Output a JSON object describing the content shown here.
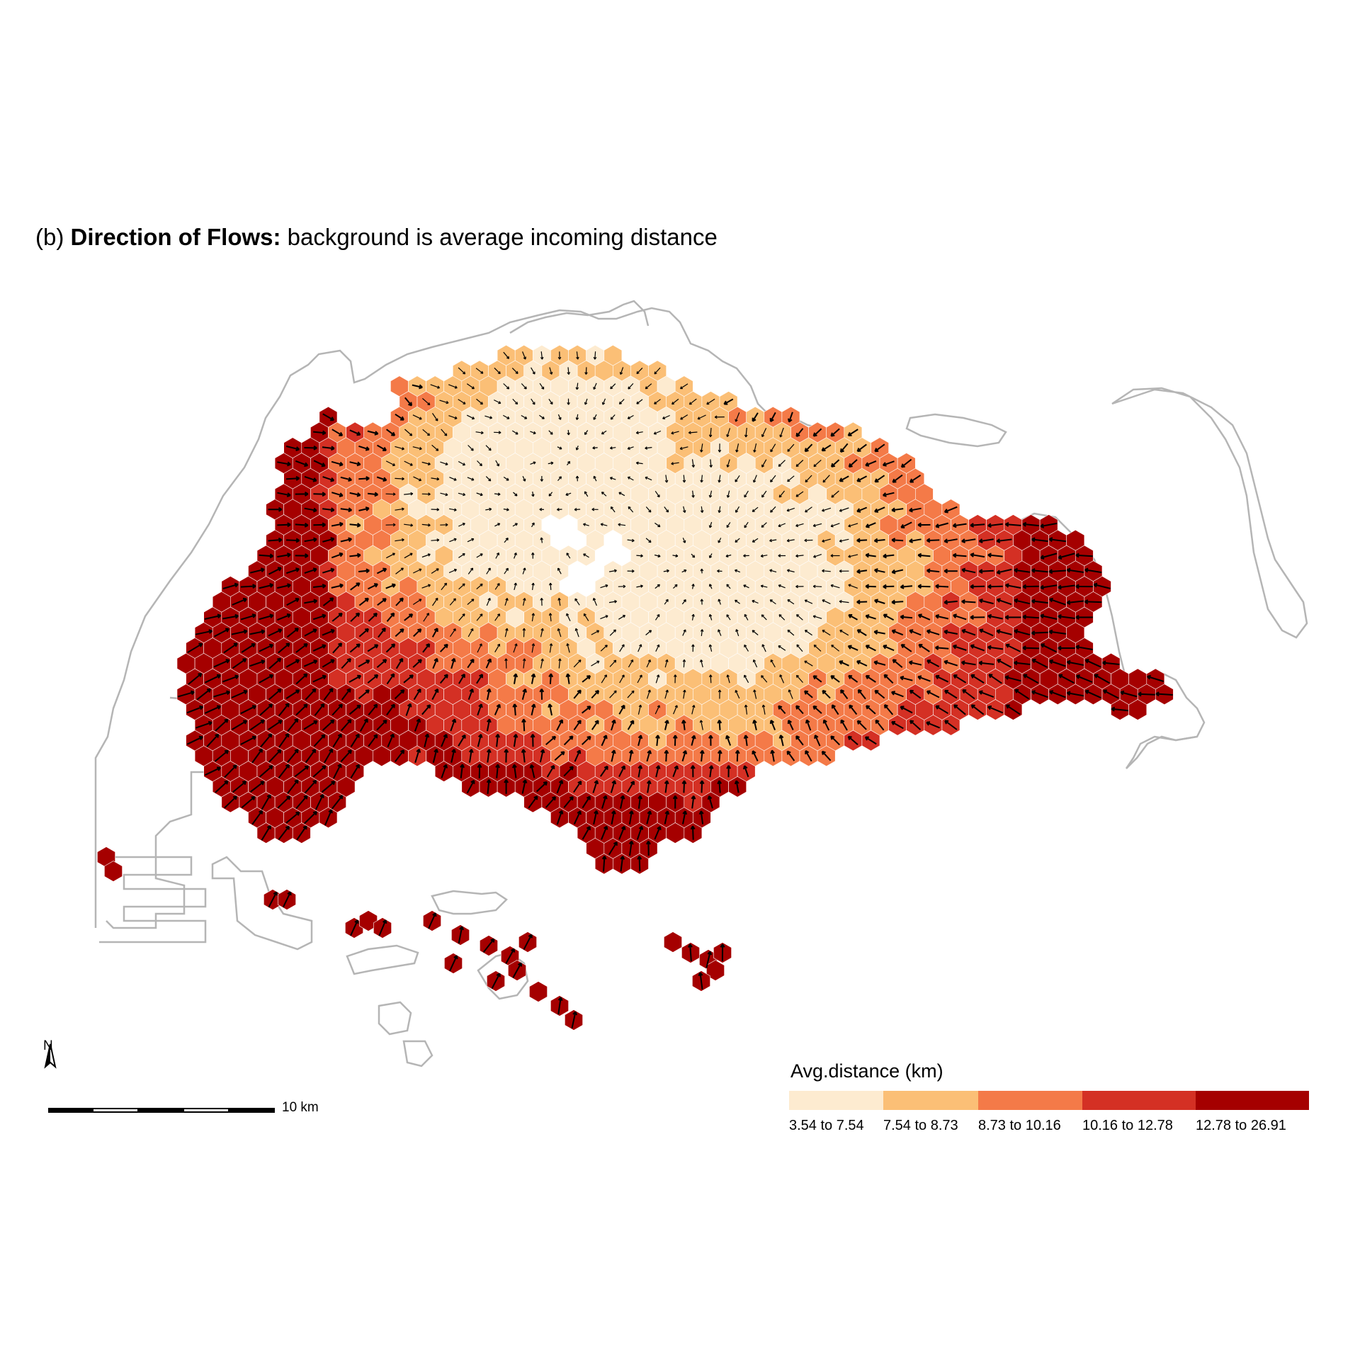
{
  "title": {
    "prefix": "(b) ",
    "bold": "Direction of Flows:",
    "rest": " background is average incoming distance"
  },
  "legend": {
    "title": "Avg.distance (km)",
    "classes": [
      {
        "label": "3.54 to 7.54",
        "color": "#fdebd0"
      },
      {
        "label": "7.54 to 8.73",
        "color": "#fbbf76"
      },
      {
        "label": "8.73 to 10.16",
        "color": "#f47a48"
      },
      {
        "label": "10.16 to 12.78",
        "color": "#d43024"
      },
      {
        "label": "12.78 to 26.91",
        "color": "#a50000"
      }
    ]
  },
  "scale_bar": {
    "label": "10 km"
  },
  "north_arrow": {
    "label": "N"
  },
  "colors": {
    "coastline": "#b5b5b5",
    "arrow": "#000000",
    "hex_border": "#ffffff"
  },
  "map": {
    "type": "hexbin flow-direction map",
    "dominant_flow": "toward central/eastern core (lightest class)",
    "extremes": "highest class along western, southern and eastern margins and offshore islands"
  }
}
